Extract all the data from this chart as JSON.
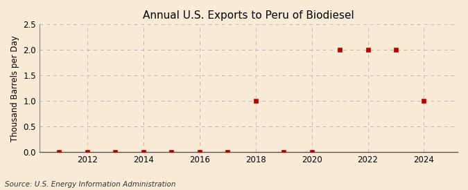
{
  "title": "Annual U.S. Exports to Peru of Biodiesel",
  "ylabel": "Thousand Barrels per Day",
  "source": "Source: U.S. Energy Information Administration",
  "background_color": "#faebd7",
  "xlim": [
    2010.3,
    2025.2
  ],
  "ylim": [
    0.0,
    2.5
  ],
  "yticks": [
    0.0,
    0.5,
    1.0,
    1.5,
    2.0,
    2.5
  ],
  "xticks": [
    2012,
    2014,
    2016,
    2018,
    2020,
    2022,
    2024
  ],
  "data_years": [
    2011,
    2012,
    2013,
    2014,
    2015,
    2016,
    2017,
    2018,
    2019,
    2020,
    2021,
    2022,
    2023,
    2024
  ],
  "data_values": [
    0,
    0,
    0,
    0,
    0,
    0,
    0,
    1,
    0,
    0,
    2,
    2,
    2,
    1
  ],
  "marker_color": "#bb0000",
  "marker_size": 4,
  "grid_color": "#bbbbbb",
  "grid_linestyle": "--",
  "title_fontsize": 11,
  "label_fontsize": 8.5,
  "tick_fontsize": 8.5,
  "source_fontsize": 7.5
}
